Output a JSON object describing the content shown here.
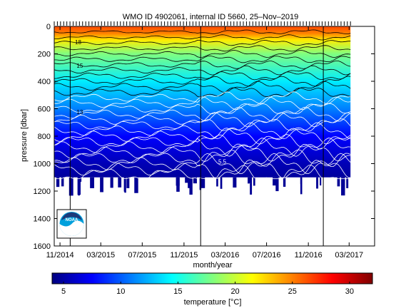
{
  "chart_data": {
    "type": "heatmap",
    "title": "WMO ID 4902061, internal ID 5660, 25–Nov–2019",
    "xlabel": "month/year",
    "ylabel": "pressure [dbar]",
    "x_ticks": [
      "11/2014",
      "03/2015",
      "07/2015",
      "11/2015",
      "03/2016",
      "07/2016",
      "11/2016",
      "03/2017"
    ],
    "x_range": [
      "2014-10-15",
      "2017-05-15"
    ],
    "y_ticks": [
      0,
      200,
      400,
      600,
      800,
      1000,
      1200,
      1400,
      1600
    ],
    "ylim": [
      0,
      1600
    ],
    "y_reversed": true,
    "data_extent": {
      "start": "2014-10-15",
      "end": "2017-03-05",
      "max_pressure_dbar": 1100
    },
    "vertical_markers": [
      "2014-12-01",
      "2015-12-20",
      "2016-12-15"
    ],
    "contour_labels": [
      {
        "date": "2014-12-15",
        "pressure": 130,
        "text": "18"
      },
      {
        "date": "2014-12-20",
        "pressure": 300,
        "text": "15"
      },
      {
        "date": "2014-12-20",
        "pressure": 640,
        "text": "13"
      },
      {
        "date": "2016-02-10",
        "pressure": 1000,
        "text": "5.5"
      }
    ],
    "temperature_profile": [
      {
        "pressure": 0,
        "temperature": 26.5
      },
      {
        "pressure": 50,
        "temperature": 25.0
      },
      {
        "pressure": 100,
        "temperature": 22.0
      },
      {
        "pressure": 200,
        "temperature": 18.0
      },
      {
        "pressure": 400,
        "temperature": 14.0
      },
      {
        "pressure": 600,
        "temperature": 11.0
      },
      {
        "pressure": 800,
        "temperature": 7.5
      },
      {
        "pressure": 1000,
        "temperature": 5.5
      },
      {
        "pressure": 1100,
        "temperature": 4.8
      }
    ],
    "colorbar": {
      "label": "temperature [°C]",
      "range": [
        4,
        32
      ],
      "ticks": [
        5,
        10,
        15,
        20,
        25,
        30
      ]
    }
  },
  "logo": {
    "text": "NOAA"
  }
}
